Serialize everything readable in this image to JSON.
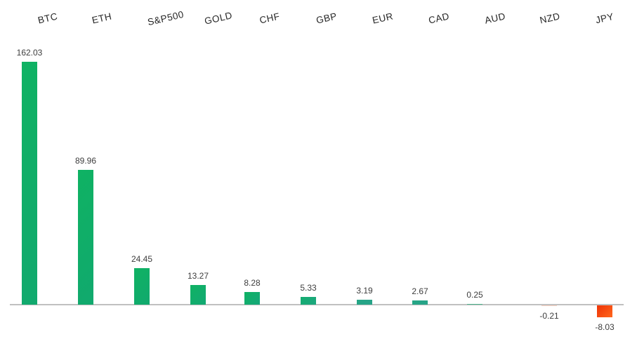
{
  "page": {
    "background": "#ffffff"
  },
  "chart_data": {
    "type": "bar",
    "categories": [
      "BTC",
      "ETH",
      "S&P500",
      "GOLD",
      "CHF",
      "GBP",
      "EUR",
      "CAD",
      "AUD",
      "NZD",
      "JPY"
    ],
    "values": [
      162.03,
      89.96,
      24.45,
      13.27,
      8.28,
      5.33,
      3.19,
      2.67,
      0.25,
      -0.21,
      -8.03
    ],
    "value_labels": [
      "162.03",
      "89.96",
      "24.45",
      "13.27",
      "8.28",
      "5.33",
      "3.19",
      "2.67",
      "0.25",
      "-0.21",
      "-8.03"
    ],
    "bar_colors": [
      [
        "#0fb263",
        "#11a96e"
      ],
      [
        "#0fb263",
        "#11a96e"
      ],
      [
        "#0fb263",
        "#11a96e"
      ],
      [
        "#0fb263",
        "#13a973"
      ],
      [
        "#0fb263",
        "#16a77a"
      ],
      [
        "#14ad70",
        "#1da77f"
      ],
      [
        "#25a685",
        "#28a389"
      ],
      [
        "#25a685",
        "#28a389"
      ],
      [
        "#4db48d",
        "#4db48d"
      ],
      [
        "#f6cdbd",
        "#f6cdbd"
      ],
      [
        "#ee3306",
        "#ff671d"
      ]
    ],
    "positive_color": "#0fb263",
    "negative_color": "#fa4a10",
    "near_zero_negative_color": "#f6cdbd",
    "axis": {
      "baseline_color": "#c0c0c0",
      "gridlines": "off",
      "y_axis_shown": false
    },
    "text_color": "#3d3d3d",
    "category_label_color": "#262626",
    "category_label_rotation_deg": -13,
    "category_labels_position": "top",
    "legend": "none",
    "ylim": [
      -8.03,
      162.03
    ]
  }
}
